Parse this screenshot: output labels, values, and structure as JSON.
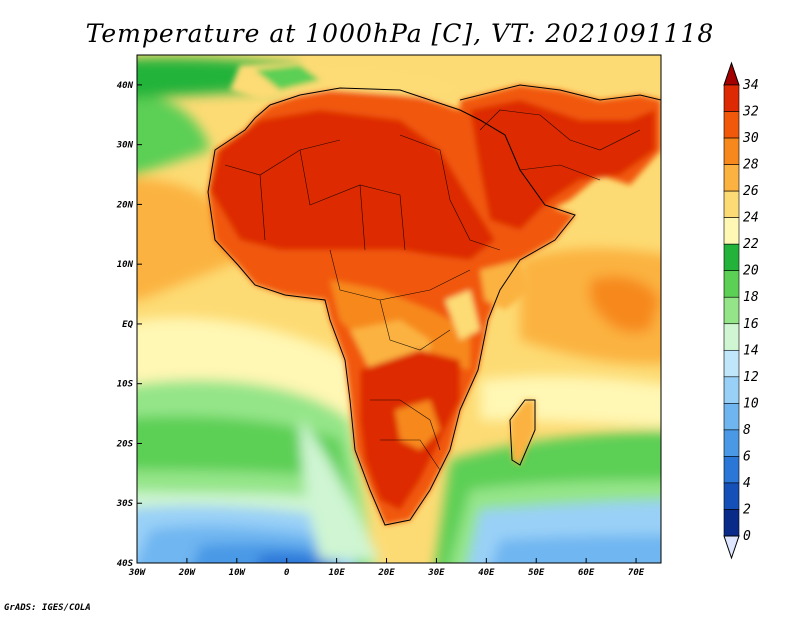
{
  "title": "Temperature at 1000hPa [C], VT: 2021091118",
  "credit": "GrADS: IGES/COLA",
  "map": {
    "lon_range": [
      -30,
      75
    ],
    "lat_range": [
      -40,
      45
    ],
    "lon_ticks": [
      {
        "v": -30,
        "label": "30W"
      },
      {
        "v": -20,
        "label": "20W"
      },
      {
        "v": -10,
        "label": "10W"
      },
      {
        "v": 0,
        "label": "0"
      },
      {
        "v": 10,
        "label": "10E"
      },
      {
        "v": 20,
        "label": "20E"
      },
      {
        "v": 30,
        "label": "30E"
      },
      {
        "v": 40,
        "label": "40E"
      },
      {
        "v": 50,
        "label": "50E"
      },
      {
        "v": 60,
        "label": "60E"
      },
      {
        "v": 70,
        "label": "70E"
      }
    ],
    "lat_ticks": [
      {
        "v": 40,
        "label": "40N"
      },
      {
        "v": 30,
        "label": "30N"
      },
      {
        "v": 20,
        "label": "20N"
      },
      {
        "v": 10,
        "label": "10N"
      },
      {
        "v": 0,
        "label": "EQ"
      },
      {
        "v": -10,
        "label": "10S"
      },
      {
        "v": -20,
        "label": "20S"
      },
      {
        "v": -30,
        "label": "30S"
      },
      {
        "v": -40,
        "label": "40S"
      }
    ]
  },
  "colorbar": {
    "labels": [
      "34",
      "32",
      "30",
      "28",
      "26",
      "24",
      "22",
      "20",
      "18",
      "16",
      "14",
      "12",
      "10",
      "8",
      "6",
      "4",
      "2",
      "0"
    ],
    "colors": [
      "#a50000",
      "#dd2a04",
      "#f1580a",
      "#f7891c",
      "#fbb240",
      "#fddb74",
      "#fff7b4",
      "#23b33a",
      "#5ccf55",
      "#94e588",
      "#cff5d2",
      "#bfe6fb",
      "#99d0f7",
      "#6fb6f1",
      "#4a99e6",
      "#2a77d8",
      "#1450b8",
      "#0a2a8a",
      "#001868",
      "#dfe6ff"
    ],
    "range": [
      0,
      34
    ]
  },
  "regions": {
    "ocean_cool": "#0a2a8a",
    "land_hot": "#a50000"
  }
}
